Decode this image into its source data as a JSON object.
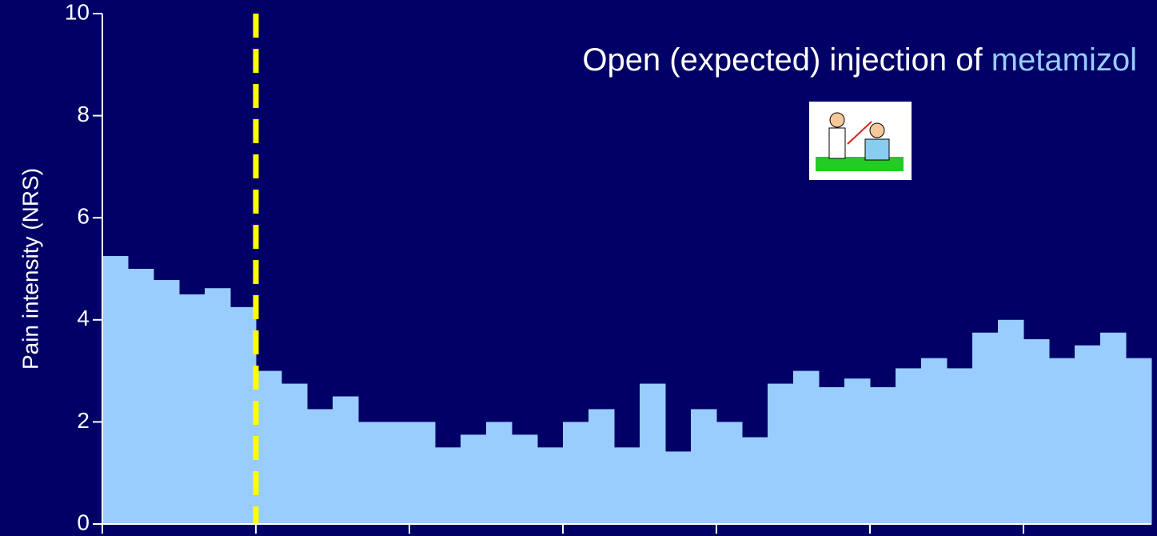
{
  "chart_data": {
    "type": "step-area",
    "title_parts": [
      "Open (expected) injection of ",
      "metamizol"
    ],
    "title_colors": [
      "#ffffff",
      "#99ccff"
    ],
    "ylabel": "Pain intensity (NRS)",
    "x": [
      0,
      1,
      2,
      3,
      4,
      5,
      6,
      7,
      8,
      9,
      10,
      11,
      12,
      13,
      14,
      15,
      16,
      17,
      18,
      19,
      20,
      21,
      22,
      23,
      24,
      25,
      26,
      27,
      28,
      29,
      30,
      31,
      32,
      33,
      34,
      35,
      36,
      37,
      38,
      39,
      40
    ],
    "values": [
      5.25,
      5.0,
      4.78,
      4.5,
      4.62,
      4.25,
      3.0,
      2.75,
      2.25,
      2.5,
      2.0,
      2.0,
      2.0,
      1.5,
      1.75,
      2.0,
      1.75,
      1.5,
      2.0,
      2.25,
      1.5,
      2.75,
      1.42,
      2.25,
      2.0,
      1.7,
      2.75,
      3.0,
      2.68,
      2.85,
      2.68,
      3.05,
      3.25,
      3.05,
      3.75,
      4.0,
      3.62,
      3.25,
      3.5,
      3.75,
      3.25
    ],
    "color": "#99ccff",
    "event_x": 6,
    "event_color": "#ffff00",
    "xlim": [
      0,
      41
    ],
    "xticks": [
      0,
      6,
      12,
      18,
      24,
      30,
      36
    ],
    "ylim": [
      0,
      10
    ],
    "yticks": [
      0,
      2,
      4,
      6,
      8,
      10
    ]
  }
}
